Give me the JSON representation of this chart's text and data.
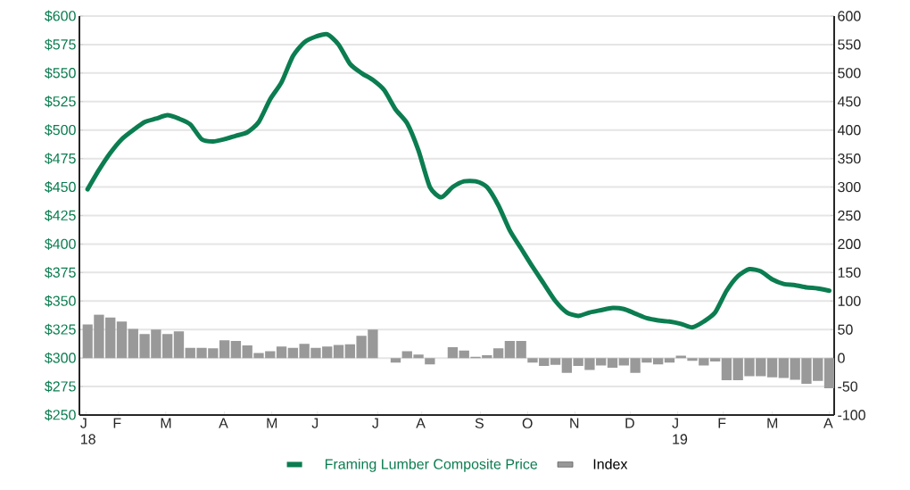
{
  "chart_data": {
    "type": "line",
    "x": [
      "2018-01-05",
      "2018-01-12",
      "2018-01-19",
      "2018-01-26",
      "2018-02-02",
      "2018-02-09",
      "2018-02-16",
      "2018-02-23",
      "2018-03-02",
      "2018-03-09",
      "2018-03-16",
      "2018-03-23",
      "2018-03-30",
      "2018-04-06",
      "2018-04-13",
      "2018-04-20",
      "2018-04-27",
      "2018-05-04",
      "2018-05-11",
      "2018-05-18",
      "2018-05-25",
      "2018-06-01",
      "2018-06-08",
      "2018-06-15",
      "2018-06-22",
      "2018-06-29",
      "2018-07-06",
      "2018-07-13",
      "2018-07-20",
      "2018-07-27",
      "2018-08-03",
      "2018-08-10",
      "2018-08-17",
      "2018-08-24",
      "2018-08-31",
      "2018-09-07",
      "2018-09-14",
      "2018-09-21",
      "2018-09-28",
      "2018-10-05",
      "2018-10-12",
      "2018-10-19",
      "2018-10-26",
      "2018-11-02",
      "2018-11-09",
      "2018-11-16",
      "2018-11-23",
      "2018-11-30",
      "2018-12-07",
      "2018-12-14",
      "2018-12-21",
      "2018-12-28",
      "2019-01-04",
      "2019-01-11",
      "2019-01-18",
      "2019-01-25",
      "2019-02-01",
      "2019-02-08",
      "2019-02-15",
      "2019-02-22",
      "2019-03-01",
      "2019-03-08",
      "2019-03-15",
      "2019-03-22",
      "2019-03-29",
      "2019-04-05"
    ],
    "series": [
      {
        "name": "Framing Lumber Composite Price",
        "color": "#0b7d50",
        "values": [
          448,
          465,
          480,
          492,
          500,
          507,
          510,
          513,
          510,
          505,
          492,
          490,
          492,
          495,
          498,
          507,
          527,
          542,
          565,
          577,
          582,
          584,
          575,
          558,
          550,
          544,
          535,
          518,
          506,
          482,
          450,
          441,
          450,
          455,
          455,
          450,
          434,
          412,
          396,
          380,
          365,
          350,
          340,
          337,
          340,
          342,
          344,
          343,
          339,
          335,
          333,
          332,
          330,
          327,
          332,
          340,
          359,
          372,
          378,
          376,
          369,
          365,
          364,
          362,
          361,
          359
        ]
      },
      {
        "name": "Index",
        "type": "bar",
        "axis": "y2",
        "color": "#999999",
        "values": [
          59,
          76,
          71,
          64,
          51,
          42,
          50,
          42,
          47,
          18,
          18,
          17,
          31,
          30,
          22,
          9,
          12,
          20,
          18,
          25,
          18,
          20,
          23,
          24,
          39,
          50,
          null,
          -8,
          12,
          6,
          -11,
          null,
          19,
          13,
          2,
          5,
          17,
          30,
          30,
          -8,
          -14,
          -12,
          -26,
          -14,
          -21,
          -13,
          -17,
          -13,
          -26,
          -8,
          -11,
          -8,
          4,
          -5,
          -13,
          -6,
          -39,
          -39,
          -32,
          -32,
          -34,
          -35,
          -38,
          -45,
          -40,
          -53
        ]
      }
    ],
    "xlim": [
      "2017-12-31",
      "2019-04-08"
    ],
    "xticks": [
      {
        "value": "2018-01-04",
        "label": "J 18"
      },
      {
        "value": "2018-01-24",
        "label": "F"
      },
      {
        "value": "2018-02-22",
        "label": "M"
      },
      {
        "value": "2018-03-30",
        "label": "A"
      },
      {
        "value": "2018-04-28",
        "label": "M"
      },
      {
        "value": "2018-05-26",
        "label": "J"
      },
      {
        "value": "2018-07-02",
        "label": "J"
      },
      {
        "value": "2018-07-29",
        "label": "A"
      },
      {
        "value": "2018-09-03",
        "label": "S"
      },
      {
        "value": "2018-10-02",
        "label": "O"
      },
      {
        "value": "2018-10-31",
        "label": "N"
      },
      {
        "value": "2018-12-04",
        "label": "D"
      },
      {
        "value": "2019-01-02",
        "label": "J 19"
      },
      {
        "value": "2019-01-30",
        "label": "F"
      },
      {
        "value": "2019-03-01",
        "label": "M"
      },
      {
        "value": "2019-04-05",
        "label": "A"
      }
    ],
    "ylim": [
      250,
      600
    ],
    "yticks": [
      {
        "value": 250,
        "label": "$250"
      },
      {
        "value": 275,
        "label": "$275"
      },
      {
        "value": 300,
        "label": "$300"
      },
      {
        "value": 325,
        "label": "$325"
      },
      {
        "value": 350,
        "label": "$350"
      },
      {
        "value": 375,
        "label": "$375"
      },
      {
        "value": 400,
        "label": "$400"
      },
      {
        "value": 425,
        "label": "$425"
      },
      {
        "value": 450,
        "label": "$450"
      },
      {
        "value": 475,
        "label": "$475"
      },
      {
        "value": 500,
        "label": "$500"
      },
      {
        "value": 525,
        "label": "$525"
      },
      {
        "value": 550,
        "label": "$550"
      },
      {
        "value": 575,
        "label": "$575"
      },
      {
        "value": 600,
        "label": "$600"
      }
    ],
    "y2lim": [
      -100,
      600
    ],
    "y2ticks": [
      -100,
      -50,
      0,
      50,
      100,
      150,
      200,
      250,
      300,
      350,
      400,
      450,
      500,
      550,
      600
    ],
    "grid": "y",
    "legend": "bottom",
    "marker": "none"
  }
}
